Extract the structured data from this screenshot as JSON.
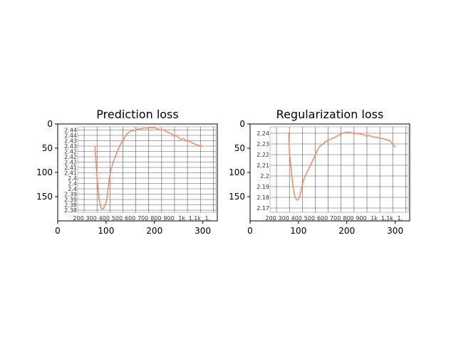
{
  "chart_data": [
    {
      "type": "line",
      "title": "Prediction loss",
      "xlabel": "",
      "ylabel": "",
      "color": "#ff7f50",
      "outer_axes": {
        "x_ticks": [
          "0",
          "100",
          "200",
          "300"
        ],
        "y_ticks": [
          "0",
          "50",
          "100",
          "150"
        ],
        "x_range": [
          0,
          330
        ],
        "y_range_inverted": [
          200,
          0
        ]
      },
      "inner_grid": {
        "x_ticks": [
          "200",
          "300",
          "400",
          "500",
          "600",
          "700",
          "800",
          "900",
          "1k",
          "1.1k",
          "1."
        ],
        "y_ticks": [
          "2.44",
          "2.44",
          "2.43",
          "2.43",
          "2.42",
          "2.42",
          "2.42",
          "2.41",
          "2.41",
          "2.4",
          "2.4",
          "2.4",
          "2.39",
          "2.39",
          "2.38",
          "2.38"
        ]
      },
      "series": [
        {
          "x": [
            77,
            79,
            81,
            83,
            85,
            87,
            89,
            91,
            93,
            95,
            97,
            99,
            101,
            103,
            105,
            107,
            110,
            113,
            116,
            120,
            124,
            128,
            132,
            136,
            140,
            145,
            150,
            155,
            160,
            165,
            170,
            175,
            180,
            185,
            190,
            195,
            200,
            205,
            210,
            215,
            220,
            225,
            230,
            235,
            240,
            245,
            250,
            255,
            260,
            265,
            270,
            275,
            280,
            285,
            290,
            295,
            300
          ],
          "y": [
            45,
            75,
            105,
            130,
            150,
            163,
            171,
            175,
            176,
            174,
            170,
            165,
            157,
            145,
            128,
            110,
            95,
            85,
            75,
            65,
            55,
            45,
            38,
            32,
            25,
            19,
            15,
            14,
            13,
            10,
            11,
            9,
            8,
            9,
            7,
            8,
            7,
            10,
            11,
            13,
            12,
            16,
            18,
            20,
            25,
            24,
            28,
            32,
            30,
            35,
            35,
            37,
            40,
            42,
            44,
            46,
            45
          ]
        }
      ]
    },
    {
      "type": "line",
      "title": "Regularization loss",
      "xlabel": "",
      "ylabel": "",
      "color": "#ff7f50",
      "outer_axes": {
        "x_ticks": [
          "0",
          "100",
          "200",
          "300"
        ],
        "y_ticks": [
          "0",
          "50",
          "100",
          "150"
        ],
        "x_range": [
          0,
          330
        ],
        "y_range_inverted": [
          200,
          0
        ]
      },
      "inner_grid": {
        "x_ticks": [
          "200",
          "300",
          "400",
          "500",
          "600",
          "700",
          "800",
          "900",
          "1k",
          "1.1k",
          "1."
        ],
        "y_ticks": [
          "2.24",
          "2.23",
          "2.22",
          "2.21",
          "2.2",
          "2.19",
          "2.18",
          "2.17"
        ]
      },
      "series": [
        {
          "x": [
            80,
            81,
            83,
            85,
            87,
            89,
            91,
            93,
            95,
            97,
            99,
            101,
            103,
            105,
            108,
            111,
            115,
            120,
            125,
            130,
            135,
            140,
            145,
            150,
            155,
            160,
            165,
            170,
            175,
            180,
            185,
            190,
            195,
            200,
            205,
            210,
            215,
            220,
            225,
            230,
            235,
            240,
            245,
            250,
            255,
            260,
            265,
            270,
            275,
            280,
            285,
            290,
            295,
            300
          ],
          "y": [
            18,
            55,
            75,
            95,
            115,
            130,
            142,
            150,
            155,
            157,
            156,
            153,
            148,
            138,
            125,
            115,
            105,
            95,
            85,
            75,
            63,
            53,
            45,
            42,
            37,
            35,
            32,
            30,
            28,
            25,
            22,
            20,
            18,
            17,
            17,
            18,
            20,
            20,
            20,
            21,
            22,
            25,
            24,
            25,
            27,
            27,
            28,
            30,
            30,
            32,
            33,
            35,
            42,
            48
          ]
        }
      ]
    }
  ]
}
